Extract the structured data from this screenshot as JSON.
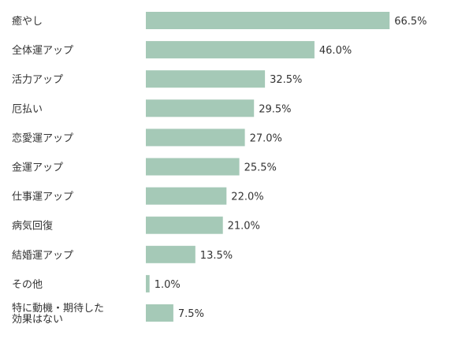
{
  "chart_data": {
    "type": "bar",
    "orientation": "horizontal",
    "title": "",
    "xlabel": "",
    "ylabel": "",
    "xlim": [
      0,
      100
    ],
    "unit": "%",
    "grid": false,
    "legend": "none",
    "bar_color": "#a5c9b7",
    "categories": [
      [
        "癒やし"
      ],
      [
        "全体運アップ"
      ],
      [
        "活力アップ"
      ],
      [
        "厄払い"
      ],
      [
        "恋愛運アップ"
      ],
      [
        "金運アップ"
      ],
      [
        "仕事運アップ"
      ],
      [
        "病気回復"
      ],
      [
        "結婚運アップ"
      ],
      [
        "その他"
      ],
      [
        "特に動機・期待した",
        "効果はない"
      ]
    ],
    "values": [
      66.5,
      46.0,
      32.5,
      29.5,
      27.0,
      25.5,
      22.0,
      21.0,
      13.5,
      1.0,
      7.5
    ],
    "value_labels": [
      "66.5%",
      "46.0%",
      "32.5%",
      "29.5%",
      "27.0%",
      "25.5%",
      "22.0%",
      "21.0%",
      "13.5%",
      "1.0%",
      "7.5%"
    ]
  }
}
